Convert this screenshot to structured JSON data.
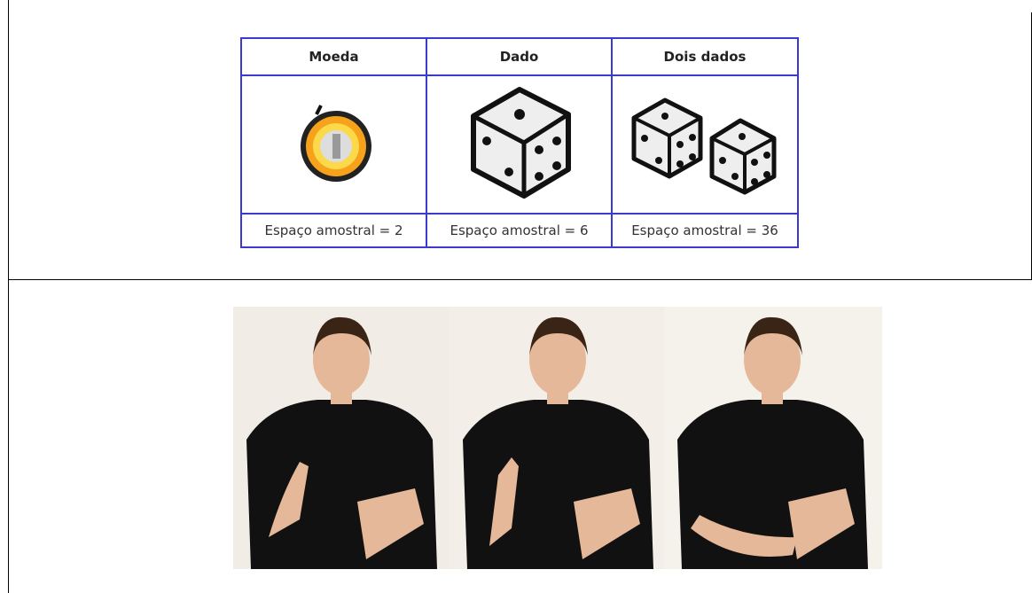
{
  "table": {
    "headers": [
      "Moeda",
      "Dado",
      "Dois dados"
    ],
    "footers": [
      "Espaço amostral = 2",
      "Espaço amostral = 6",
      "Espaço amostral = 36"
    ]
  }
}
